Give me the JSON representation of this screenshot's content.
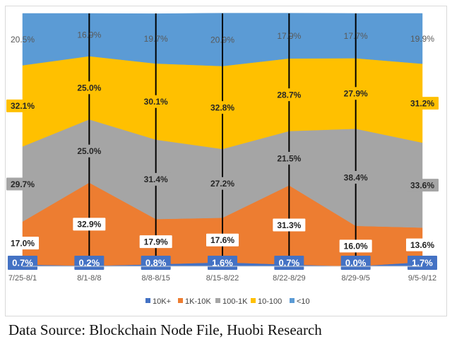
{
  "chart_data": {
    "type": "area",
    "stacked": "percent",
    "categories": [
      "7/25-8/1",
      "8/1-8/8",
      "8/8-8/15",
      "8/15-8/22",
      "8/22-8/29",
      "8/29-9/5",
      "9/5-9/12"
    ],
    "series": [
      {
        "name": "10K+",
        "color": "#4472c4",
        "values": [
          0.7,
          0.2,
          0.8,
          1.6,
          0.7,
          0.0,
          1.7
        ],
        "labels": [
          "0.7%",
          "0.2%",
          "0.8%",
          "1.6%",
          "0.7%",
          "0.0%",
          "1.7%"
        ]
      },
      {
        "name": "1K-10K",
        "color": "#ed7d31",
        "values": [
          17.0,
          32.9,
          17.9,
          17.6,
          31.3,
          16.0,
          13.6
        ],
        "labels": [
          "17.0%",
          "32.9%",
          "17.9%",
          "17.6%",
          "31.3%",
          "16.0%",
          "13.6%"
        ]
      },
      {
        "name": "100-1K",
        "color": "#a5a5a5",
        "values": [
          29.7,
          25.0,
          31.4,
          27.2,
          21.5,
          38.4,
          33.6
        ],
        "labels": [
          "29.7%",
          "25.0%",
          "31.4%",
          "27.2%",
          "21.5%",
          "38.4%",
          "33.6%"
        ]
      },
      {
        "name": "10-100",
        "color": "#ffc000",
        "values": [
          32.1,
          25.0,
          30.1,
          32.8,
          28.7,
          27.9,
          31.2
        ],
        "labels": [
          "32.1%",
          "25.0%",
          "30.1%",
          "32.8%",
          "28.7%",
          "27.9%",
          "31.2%"
        ]
      },
      {
        "name": "<10",
        "color": "#5b9bd5",
        "values": [
          20.5,
          16.9,
          19.7,
          20.9,
          17.9,
          17.7,
          19.9
        ],
        "labels": [
          "20.5%",
          "16.9%",
          "19.7%",
          "20.9%",
          "17.9%",
          "17.7%",
          "19.9%"
        ]
      }
    ],
    "ylim": [
      0,
      100
    ],
    "grid": false,
    "legend_position": "bottom"
  },
  "source_note": "Data Source: Blockchain Node File, Huobi Research"
}
